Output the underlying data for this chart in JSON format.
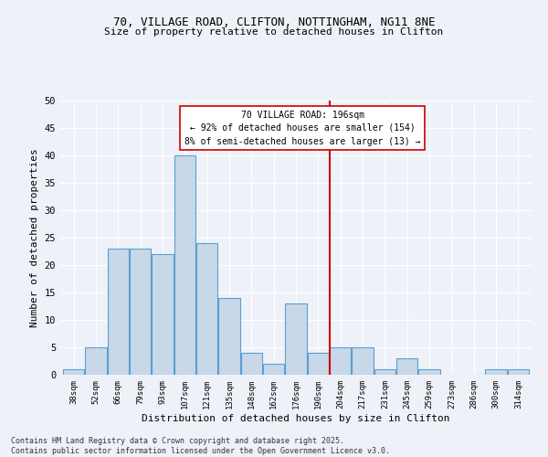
{
  "title1": "70, VILLAGE ROAD, CLIFTON, NOTTINGHAM, NG11 8NE",
  "title2": "Size of property relative to detached houses in Clifton",
  "xlabel": "Distribution of detached houses by size in Clifton",
  "ylabel": "Number of detached properties",
  "categories": [
    "38sqm",
    "52sqm",
    "66sqm",
    "79sqm",
    "93sqm",
    "107sqm",
    "121sqm",
    "135sqm",
    "148sqm",
    "162sqm",
    "176sqm",
    "190sqm",
    "204sqm",
    "217sqm",
    "231sqm",
    "245sqm",
    "259sqm",
    "273sqm",
    "286sqm",
    "300sqm",
    "314sqm"
  ],
  "values": [
    1,
    5,
    23,
    23,
    22,
    40,
    24,
    14,
    4,
    2,
    13,
    4,
    5,
    5,
    1,
    3,
    1,
    0,
    0,
    1,
    1
  ],
  "bar_color": "#c8d8e8",
  "bar_edge_color": "#5a9fd4",
  "ref_line_x": 11.5,
  "ref_line_label": "70 VILLAGE ROAD: 196sqm",
  "annotation_line1": "← 92% of detached houses are smaller (154)",
  "annotation_line2": "8% of semi-detached houses are larger (13) →",
  "box_color": "#cc0000",
  "ylim": [
    0,
    50
  ],
  "yticks": [
    0,
    5,
    10,
    15,
    20,
    25,
    30,
    35,
    40,
    45,
    50
  ],
  "background_color": "#eef2f8",
  "grid_color": "#ffffff",
  "footer": "Contains HM Land Registry data © Crown copyright and database right 2025.\nContains public sector information licensed under the Open Government Licence v3.0."
}
